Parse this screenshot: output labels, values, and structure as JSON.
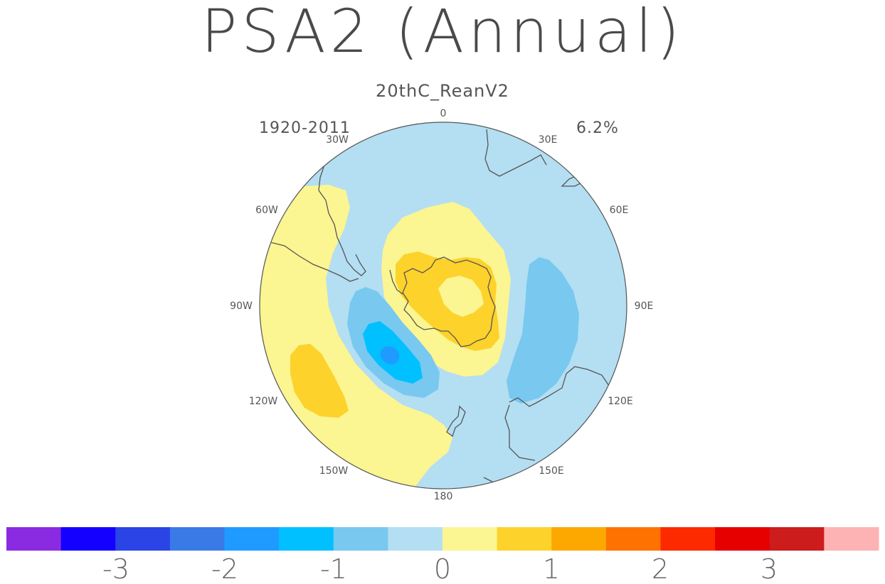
{
  "title": "PSA2 (Annual)",
  "subtitle": "20thC_ReanV2",
  "period": "1920-2011",
  "variance_explained": "6.2%",
  "longitude_labels": [
    "0",
    "30E",
    "60E",
    "90E",
    "120E",
    "150E",
    "180",
    "150W",
    "120W",
    "90W",
    "60W",
    "30W"
  ],
  "colorbar": {
    "colors": [
      "#8a2be2",
      "#1400ff",
      "#2a44e6",
      "#3a7ae6",
      "#1f9bff",
      "#00c0ff",
      "#78c8f0",
      "#b4def2",
      "#fbf592",
      "#fdd22a",
      "#fda800",
      "#fd7200",
      "#fd2a00",
      "#e60000",
      "#cc1c1c",
      "#fdb3b3"
    ],
    "tick_labels": [
      "-3",
      "-2",
      "-1",
      "0",
      "1",
      "2",
      "3"
    ]
  },
  "map_colors": {
    "neutral_negative": "#b4def2",
    "light_positive": "#fbf592",
    "medium_positive": "#fdd22a",
    "weak_negative": "#78c8f0",
    "moderate_negative": "#00c0ff",
    "strong_negative": "#1f9bff",
    "coastline": "#555555"
  }
}
